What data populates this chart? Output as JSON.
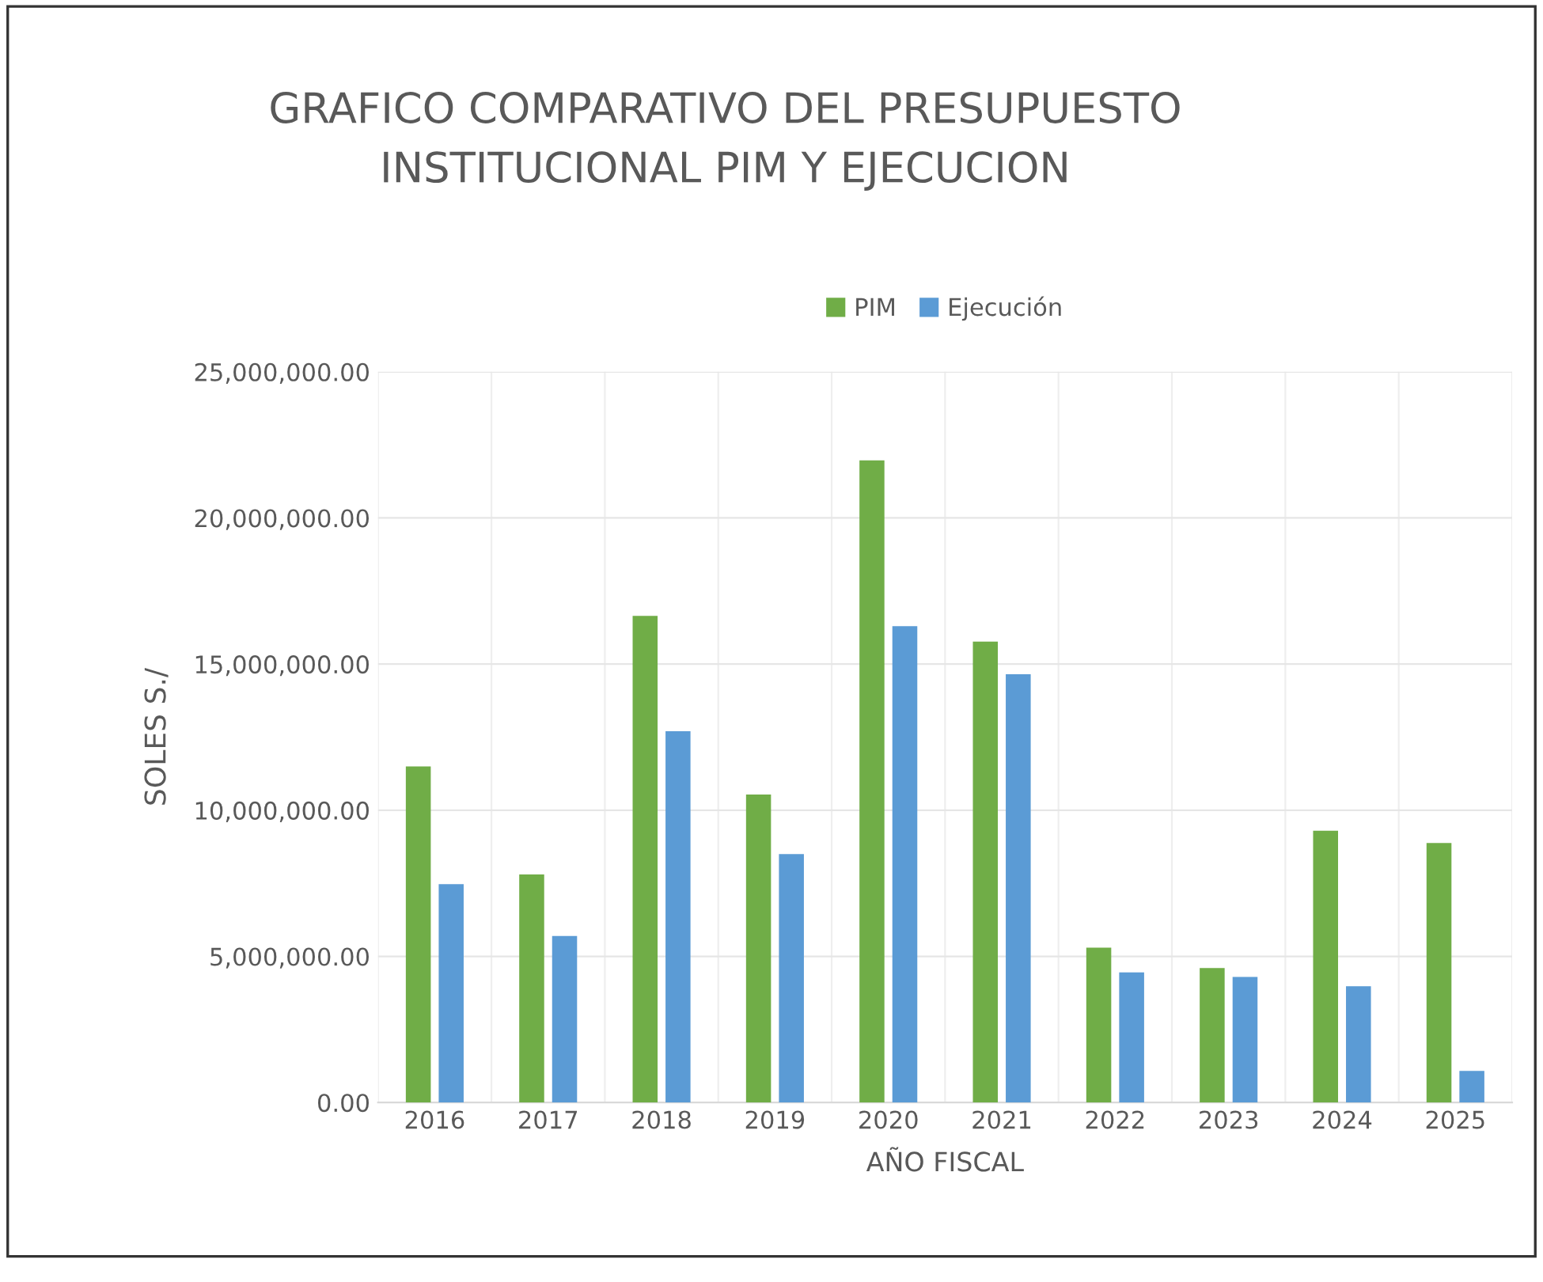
{
  "chart_data": {
    "type": "bar",
    "title": "GRAFICO COMPARATIVO DEL PRESUPUESTO\nINSTITUCIONAL PIM Y EJECUCION",
    "xlabel": "AÑO FISCAL",
    "ylabel": "SOLES S./",
    "categories": [
      "2016",
      "2017",
      "2018",
      "2019",
      "2020",
      "2021",
      "2022",
      "2023",
      "2024",
      "2025"
    ],
    "series": [
      {
        "name": "PIM",
        "color": "#70ad47",
        "values": [
          11500000,
          7800000,
          16650000,
          10540000,
          21970000,
          15770000,
          5300000,
          4600000,
          9300000,
          8880000
        ]
      },
      {
        "name": "Ejecución",
        "color": "#5b9bd5",
        "values": [
          7470000,
          5700000,
          12700000,
          8500000,
          16300000,
          14650000,
          4450000,
          4300000,
          3980000,
          1080000
        ]
      }
    ],
    "ylim": [
      0,
      25000000
    ],
    "yticks": [
      {
        "value": 0,
        "label": "0.00"
      },
      {
        "value": 5000000,
        "label": "5,000,000.00"
      },
      {
        "value": 10000000,
        "label": "10,000,000.00"
      },
      {
        "value": 15000000,
        "label": "15,000,000.00"
      },
      {
        "value": 20000000,
        "label": "20,000,000.00"
      },
      {
        "value": 25000000,
        "label": "25,000,000.00"
      }
    ],
    "grid": true,
    "legend": "top"
  }
}
